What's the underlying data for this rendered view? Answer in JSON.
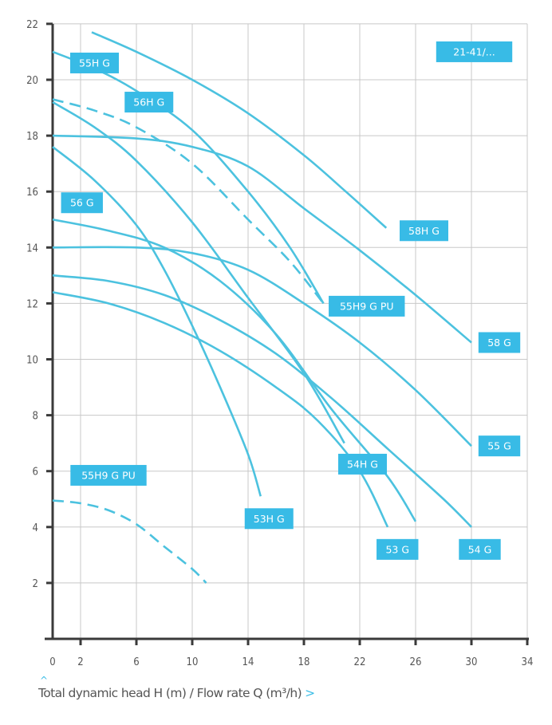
{
  "chart_data": {
    "type": "line",
    "title": "",
    "xlabel": "Total dynamic head H (m) / Flow rate Q (m³/h)",
    "ylabel": "",
    "xlim": [
      0,
      34
    ],
    "ylim": [
      0,
      22
    ],
    "x_ticks": [
      0,
      2,
      6,
      10,
      14,
      18,
      22,
      26,
      30,
      34
    ],
    "y_ticks": [
      2,
      4,
      6,
      8,
      10,
      12,
      14,
      16,
      18,
      20,
      22
    ],
    "grid": true,
    "series": [
      {
        "name": "58H G",
        "dashed": false,
        "points": [
          [
            2.8,
            21.7
          ],
          [
            6,
            21
          ],
          [
            10,
            20
          ],
          [
            14,
            18.8
          ],
          [
            18,
            17.3
          ],
          [
            21,
            16
          ],
          [
            23.9,
            14.7
          ]
        ]
      },
      {
        "name": "58 G",
        "dashed": false,
        "points": [
          [
            0,
            18
          ],
          [
            6,
            17.9
          ],
          [
            10,
            17.6
          ],
          [
            14,
            16.9
          ],
          [
            18,
            15.4
          ],
          [
            22,
            13.9
          ],
          [
            26,
            12.3
          ],
          [
            30,
            10.6
          ]
        ]
      },
      {
        "name": "55H G",
        "dashed": false,
        "points": [
          [
            0,
            21
          ],
          [
            3,
            20.4
          ],
          [
            6,
            19.6
          ],
          [
            10,
            18.2
          ],
          [
            14,
            16
          ],
          [
            17,
            14
          ],
          [
            19.4,
            12
          ]
        ]
      },
      {
        "name": "55H9 G PU",
        "dashed": true,
        "points": [
          [
            0,
            19.3
          ],
          [
            3,
            18.9
          ],
          [
            6,
            18.3
          ],
          [
            10,
            17
          ],
          [
            14,
            15
          ],
          [
            17,
            13.5
          ],
          [
            19.4,
            12
          ]
        ]
      },
      {
        "name": "56H G",
        "dashed": false,
        "points": [
          [
            0,
            19.2
          ],
          [
            3,
            18.3
          ],
          [
            6,
            17.1
          ],
          [
            10,
            14.9
          ],
          [
            14,
            12.2
          ],
          [
            18,
            9.5
          ],
          [
            20.9,
            7
          ]
        ]
      },
      {
        "name": "53H G",
        "dashed": false,
        "points": [
          [
            0,
            17.6
          ],
          [
            3,
            16.4
          ],
          [
            6,
            14.8
          ],
          [
            8,
            13.2
          ],
          [
            10,
            11.2
          ],
          [
            12,
            9
          ],
          [
            14,
            6.6
          ],
          [
            14.9,
            5.1
          ]
        ]
      },
      {
        "name": "56 G",
        "dashed": false,
        "points": [
          [
            0,
            15
          ],
          [
            4,
            14.6
          ],
          [
            8,
            14
          ],
          [
            12,
            12.8
          ],
          [
            16,
            10.9
          ],
          [
            20,
            8.2
          ],
          [
            24,
            5.8
          ],
          [
            26,
            4.2
          ]
        ]
      },
      {
        "name": "55 G",
        "dashed": false,
        "points": [
          [
            0,
            14
          ],
          [
            6,
            14
          ],
          [
            10,
            13.8
          ],
          [
            14,
            13.2
          ],
          [
            18,
            12
          ],
          [
            22,
            10.6
          ],
          [
            26,
            8.9
          ],
          [
            30,
            6.9
          ]
        ]
      },
      {
        "name": "54 G",
        "dashed": false,
        "points": [
          [
            0,
            13
          ],
          [
            4,
            12.8
          ],
          [
            8,
            12.3
          ],
          [
            12,
            11.4
          ],
          [
            16,
            10.2
          ],
          [
            20,
            8.6
          ],
          [
            24,
            6.8
          ],
          [
            28,
            5
          ],
          [
            30,
            4
          ]
        ]
      },
      {
        "name": "53 G",
        "dashed": false,
        "points": [
          [
            0,
            12.4
          ],
          [
            4,
            12
          ],
          [
            8,
            11.3
          ],
          [
            12,
            10.3
          ],
          [
            16,
            9
          ],
          [
            19,
            7.8
          ],
          [
            22,
            6
          ],
          [
            24,
            4
          ]
        ]
      },
      {
        "name": "55H9 G PU (low)",
        "dashed": true,
        "points": [
          [
            0,
            4.95
          ],
          [
            2,
            4.85
          ],
          [
            4,
            4.6
          ],
          [
            6,
            4.1
          ],
          [
            8,
            3.3
          ],
          [
            10,
            2.5
          ],
          [
            11,
            2
          ]
        ]
      }
    ],
    "annotations": [
      {
        "text": "55H G",
        "q": 3,
        "h": 20.6
      },
      {
        "text": "56H G",
        "q": 6.9,
        "h": 19.2
      },
      {
        "text": "56 G",
        "q": 2.1,
        "h": 15.6
      },
      {
        "text": "21-41/...",
        "q": 30.2,
        "h": 21
      },
      {
        "text": "58H G",
        "q": 26.6,
        "h": 14.6
      },
      {
        "text": "55H9 G PU",
        "q": 22.5,
        "h": 11.9
      },
      {
        "text": "58 G",
        "q": 32,
        "h": 10.6
      },
      {
        "text": "55 G",
        "q": 32,
        "h": 6.9
      },
      {
        "text": "54H G",
        "q": 22.2,
        "h": 6.25
      },
      {
        "text": "55H9 G PU",
        "q": 4,
        "h": 5.85
      },
      {
        "text": "53H G",
        "q": 15.5,
        "h": 4.3
      },
      {
        "text": "53 G",
        "q": 24.7,
        "h": 3.2
      },
      {
        "text": "54 G",
        "q": 30.6,
        "h": 3.2
      }
    ],
    "colors": {
      "curve": "#4cc2df",
      "label_bg": "#38bbe6",
      "label_text": "#ffffff",
      "grid": "#c8c8c8",
      "axis": "#3a3a3a"
    }
  },
  "footer": {
    "caret": "^",
    "arrow": ">"
  }
}
